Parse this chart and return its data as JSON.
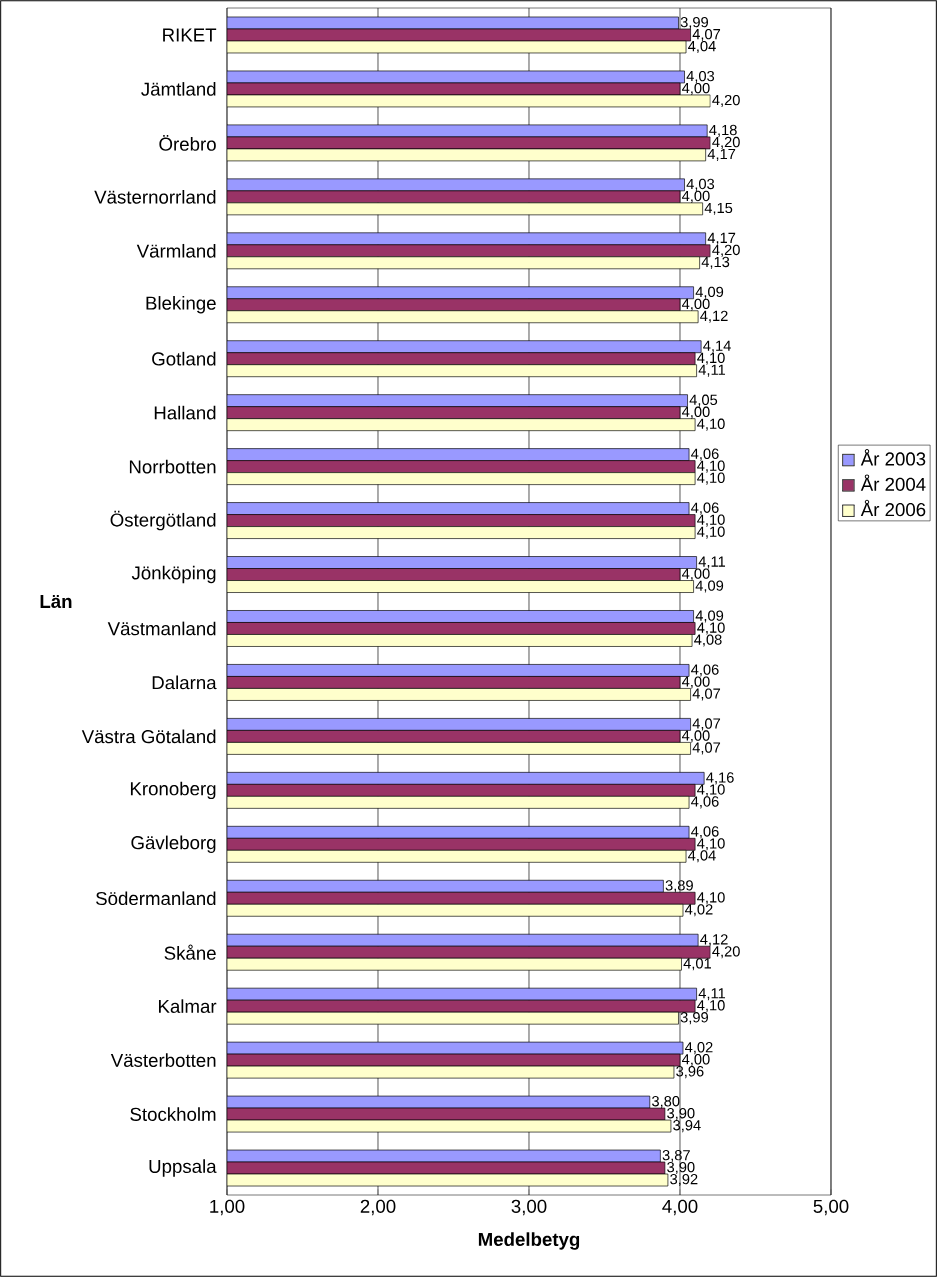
{
  "chart_data": {
    "type": "bar",
    "orientation": "horizontal",
    "xlabel": "Medelbetyg",
    "ylabel": "Län",
    "categories": [
      "RIKET",
      "Jämtland",
      "Örebro",
      "Västernorrland",
      "Värmland",
      "Blekinge",
      "Gotland",
      "Halland",
      "Norrbotten",
      "Östergötland",
      "Jönköping",
      "Västmanland",
      "Dalarna",
      "Västra Götaland",
      "Kronoberg",
      "Gävleborg",
      "Södermanland",
      "Skåne",
      "Kalmar",
      "Västerbotten",
      "Stockholm",
      "Uppsala"
    ],
    "series": [
      {
        "name": "År 2003",
        "color": "#9999ff",
        "values": [
          3.99,
          4.03,
          4.18,
          4.03,
          4.17,
          4.09,
          4.14,
          4.05,
          4.06,
          4.06,
          4.11,
          4.09,
          4.06,
          4.07,
          4.16,
          4.06,
          3.89,
          4.12,
          4.11,
          4.02,
          3.8,
          3.87
        ],
        "value_labels": [
          "3,99",
          "4,03",
          "4,18",
          "4,03",
          "4,17",
          "4,09",
          "4,14",
          "4,05",
          "4,06",
          "4,06",
          "4,11",
          "4,09",
          "4,06",
          "4,07",
          "4,16",
          "4,06",
          "3,89",
          "4,12",
          "4,11",
          "4,02",
          "3,80",
          "3,87"
        ]
      },
      {
        "name": "År 2004",
        "color": "#993366",
        "values": [
          4.07,
          4.0,
          4.2,
          4.0,
          4.2,
          4.0,
          4.1,
          4.0,
          4.1,
          4.1,
          4.0,
          4.1,
          4.0,
          4.0,
          4.1,
          4.1,
          4.1,
          4.2,
          4.1,
          4.0,
          3.9,
          3.9
        ],
        "value_labels": [
          "4,07",
          "4,00",
          "4,20",
          "4,00",
          "4,20",
          "4,00",
          "4,10",
          "4,00",
          "4,10",
          "4,10",
          "4,00",
          "4,10",
          "4,00",
          "4,00",
          "4,10",
          "4,10",
          "4,10",
          "4,20",
          "4,10",
          "4,00",
          "3,90",
          "3,90"
        ]
      },
      {
        "name": "År 2006",
        "color": "#ffffcc",
        "values": [
          4.04,
          4.2,
          4.17,
          4.15,
          4.13,
          4.12,
          4.11,
          4.1,
          4.1,
          4.1,
          4.09,
          4.08,
          4.07,
          4.07,
          4.06,
          4.04,
          4.02,
          4.01,
          3.99,
          3.96,
          3.94,
          3.92
        ],
        "value_labels": [
          "4,04",
          "4,20",
          "4,17",
          "4,15",
          "4,13",
          "4,12",
          "4,11",
          "4,10",
          "4,10",
          "4,10",
          "4,09",
          "4,08",
          "4,07",
          "4,07",
          "4,06",
          "4,04",
          "4,02",
          "4,01",
          "3,99",
          "3,96",
          "3,94",
          "3,92"
        ]
      }
    ],
    "xlim": [
      1,
      5
    ],
    "xticks": [
      {
        "value": 1,
        "label": "1,00"
      },
      {
        "value": 2,
        "label": "2,00"
      },
      {
        "value": 3,
        "label": "3,00"
      },
      {
        "value": 4,
        "label": "4,00"
      },
      {
        "value": 5,
        "label": "5,00"
      }
    ],
    "grid": "x",
    "legend": "right"
  }
}
